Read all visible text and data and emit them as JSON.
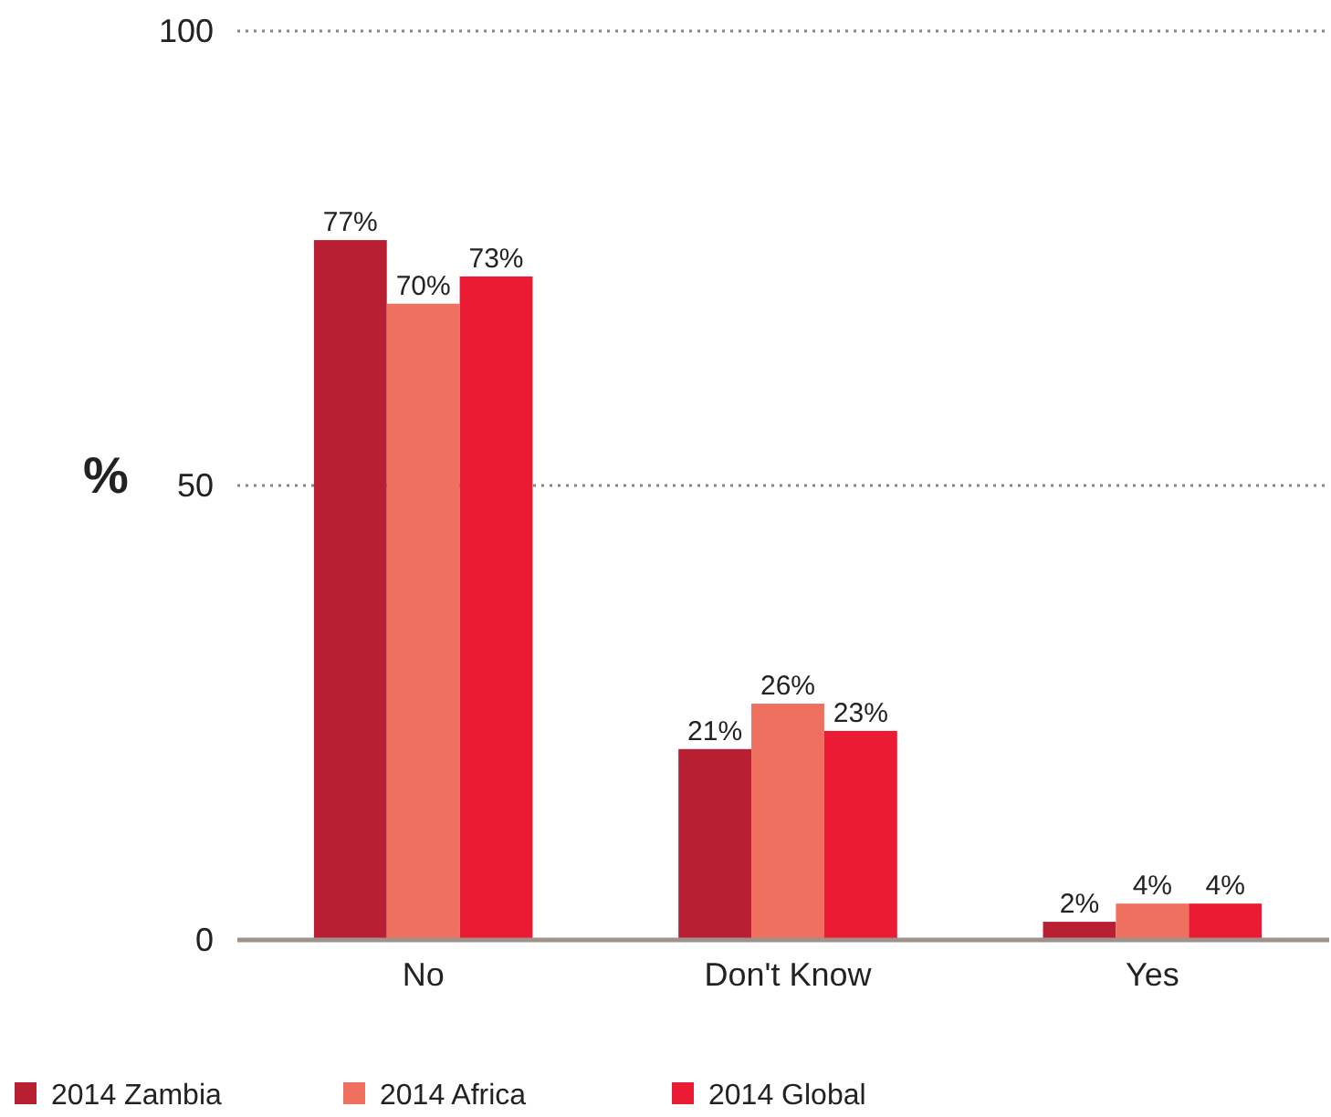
{
  "chart_data": {
    "type": "bar",
    "ylabel": "%",
    "categories": [
      "No",
      "Don't Know",
      "Yes"
    ],
    "series": [
      {
        "name": "2014 Zambia",
        "color": "#b81f32",
        "values": [
          77,
          21,
          2
        ],
        "value_labels": [
          "77%",
          "21%",
          "2%"
        ]
      },
      {
        "name": "2014 Africa",
        "color": "#f0705f",
        "values": [
          70,
          26,
          4
        ],
        "value_labels": [
          "70%",
          "26%",
          "4%"
        ]
      },
      {
        "name": "2014 Global",
        "color": "#ec1b34",
        "values": [
          73,
          23,
          4
        ],
        "value_labels": [
          "73%",
          "23%",
          "4%"
        ]
      }
    ],
    "ylim": [
      0,
      100
    ],
    "yticks": [
      0,
      50,
      100
    ],
    "grid": "y",
    "legend": "bottom"
  }
}
